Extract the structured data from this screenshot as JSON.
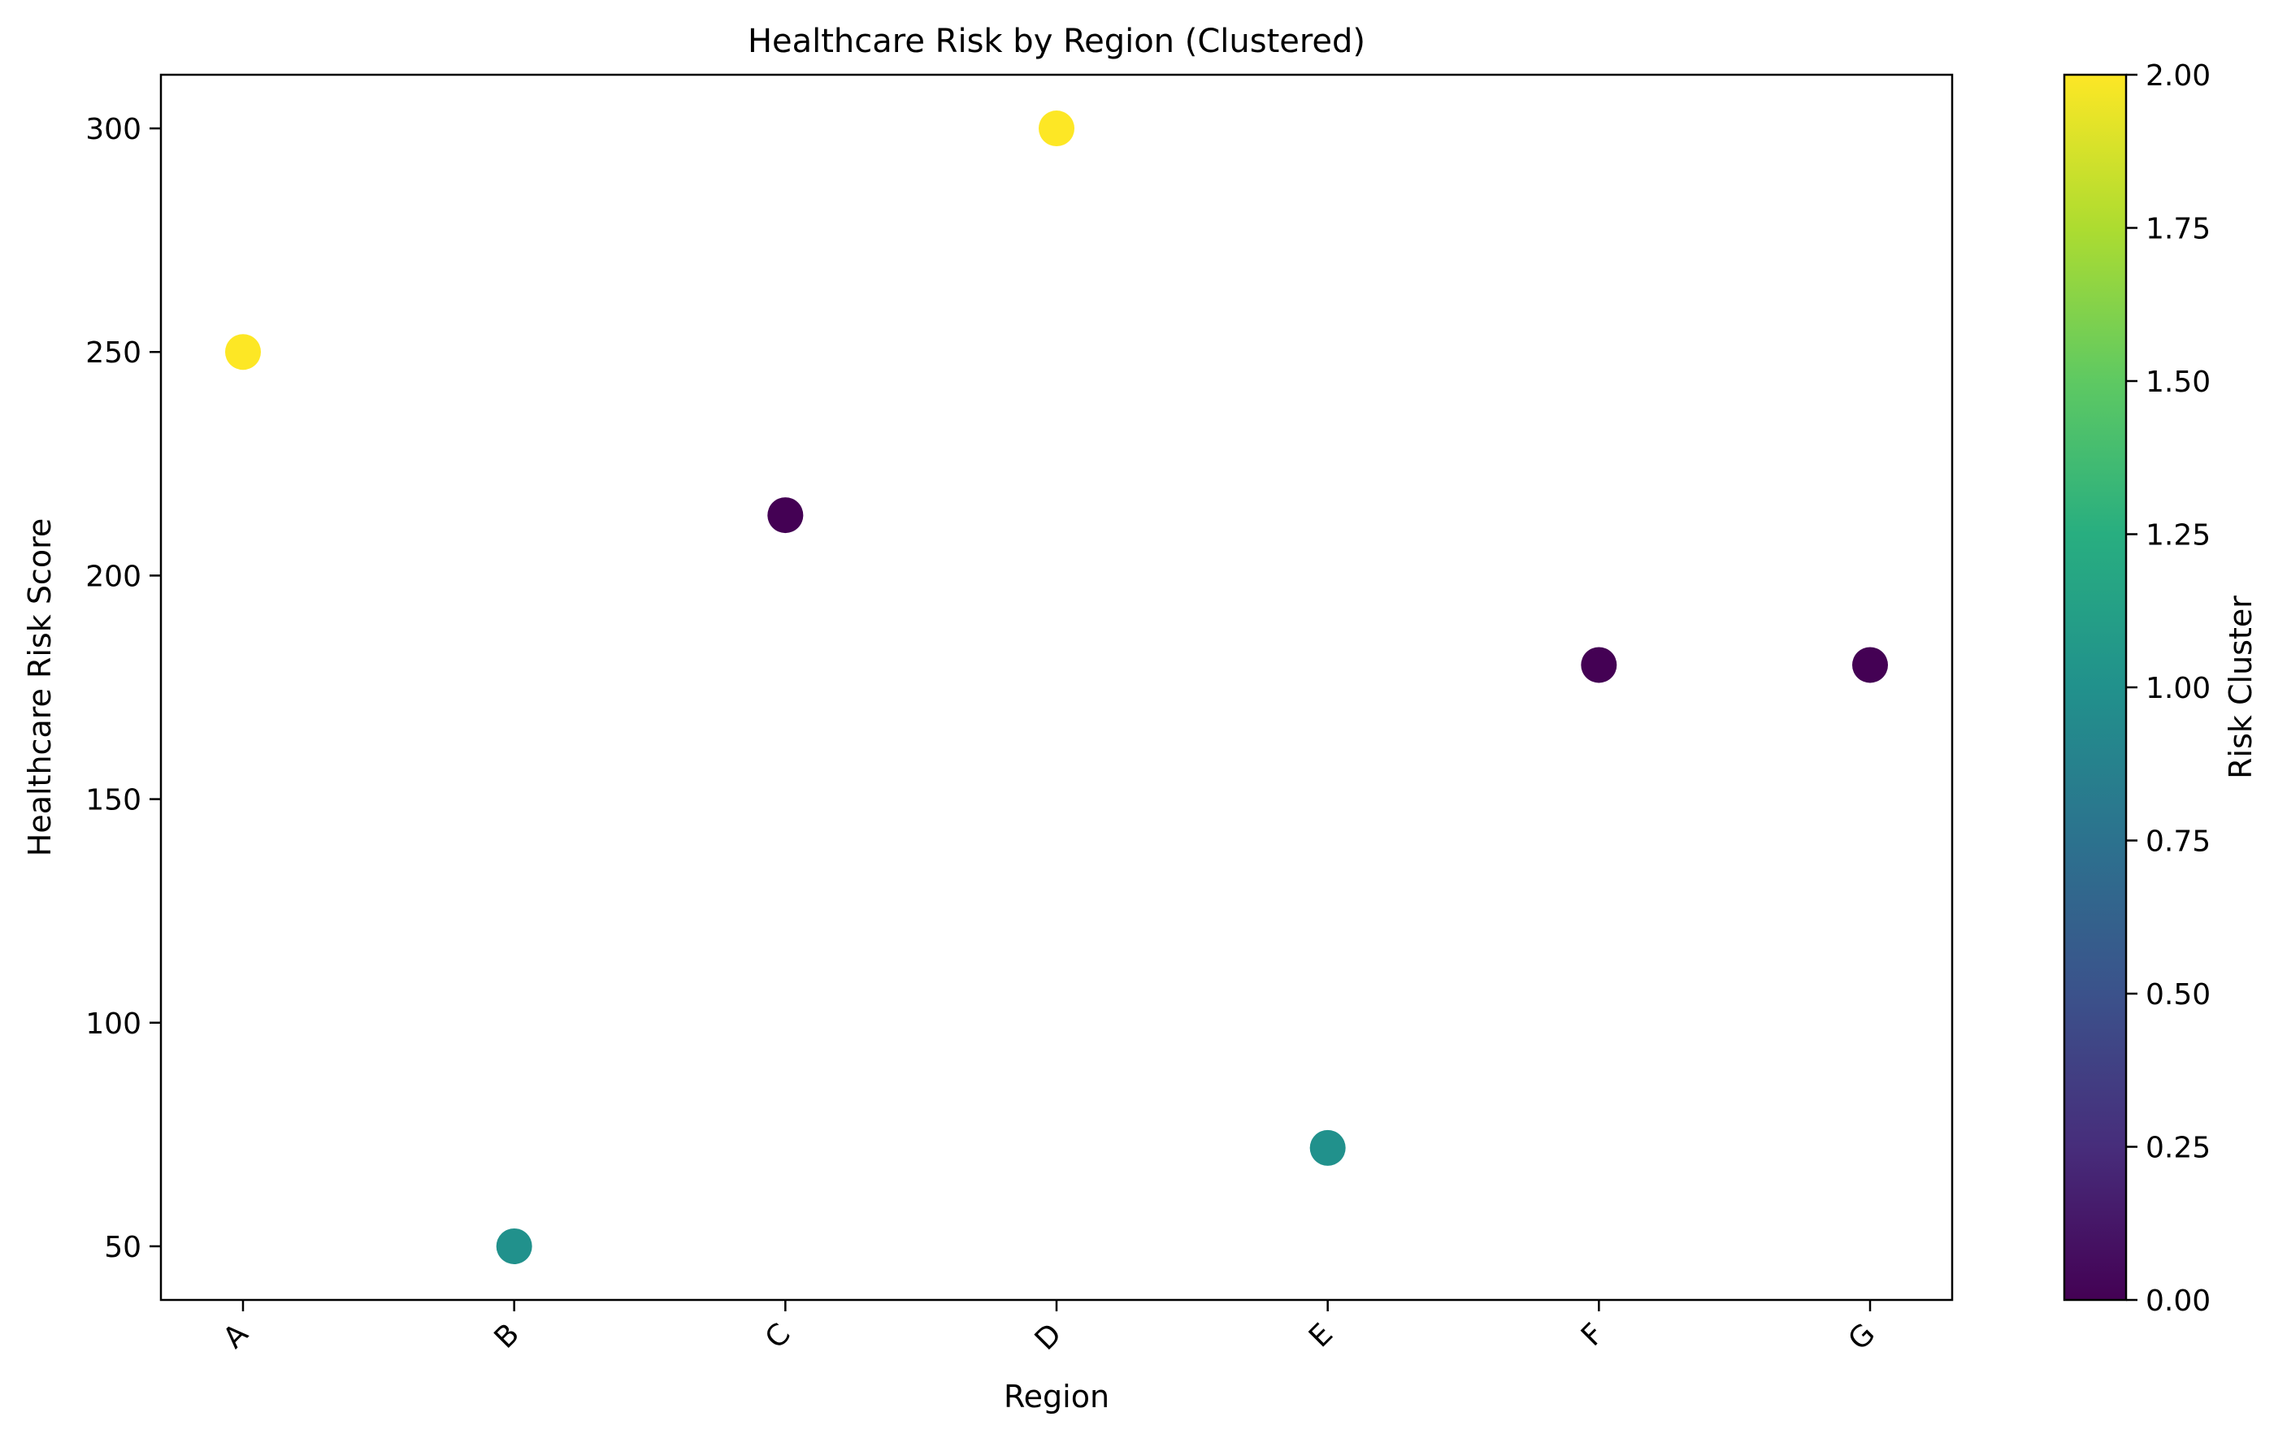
{
  "chart_data": {
    "type": "scatter",
    "title": "Healthcare Risk by Region (Clustered)",
    "xlabel": "Region",
    "ylabel": "Healthcare Risk Score",
    "categories": [
      "A",
      "B",
      "C",
      "D",
      "E",
      "F",
      "G"
    ],
    "y_ticks": [
      "50",
      "100",
      "150",
      "200",
      "250",
      "300"
    ],
    "ylim": [
      38,
      312
    ],
    "grid": false,
    "colorbar": {
      "label": "Risk Cluster",
      "range": [
        0,
        2
      ],
      "ticks": [
        "0.00",
        "0.25",
        "0.50",
        "0.75",
        "1.00",
        "1.25",
        "1.50",
        "1.75",
        "2.00"
      ],
      "colormap": "viridis"
    },
    "points": [
      {
        "x": "A",
        "y": 250,
        "cluster": 2
      },
      {
        "x": "B",
        "y": 50,
        "cluster": 1
      },
      {
        "x": "C",
        "y": 213.5,
        "cluster": 0
      },
      {
        "x": "D",
        "y": 300,
        "cluster": 2
      },
      {
        "x": "E",
        "y": 72,
        "cluster": 1
      },
      {
        "x": "F",
        "y": 180,
        "cluster": 0
      },
      {
        "x": "G",
        "y": 180,
        "cluster": 0
      }
    ],
    "colors": {
      "cluster_0": "#440154",
      "cluster_1": "#21918c",
      "cluster_2": "#fde725"
    }
  }
}
